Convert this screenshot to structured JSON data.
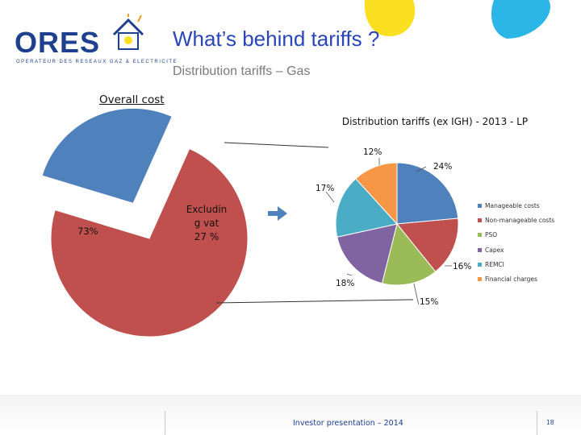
{
  "header": {
    "logo_text": "ORES",
    "logo_tagline": "OPERATEUR DES RESEAUX GAZ & ELECTRICITE",
    "title": "What’s behind tariffs ?",
    "subtitle": "Distribution tariffs – Gas"
  },
  "section": {
    "label": "Overall cost"
  },
  "arrow_icon": "right-arrow",
  "chart_data": [
    {
      "type": "pie",
      "title": "Overall cost",
      "slices": [
        {
          "label": "",
          "value": 73,
          "display": "73%",
          "color": "#c0504d"
        },
        {
          "label": "Excluding vat",
          "value": 27,
          "display": "Excludin\ng vat\n27 %",
          "color": "#4f81bd"
        }
      ]
    },
    {
      "type": "pie",
      "title": "Distribution tariffs (ex IGH) - 2013 - LP",
      "legend_position": "right",
      "slices": [
        {
          "label": "Manageable costs",
          "value": 24,
          "display": "24%",
          "color": "#4f81bd"
        },
        {
          "label": "Non-manageable costs",
          "value": 16,
          "display": "16%",
          "color": "#c0504d"
        },
        {
          "label": "PSO",
          "value": 15,
          "display": "15%",
          "color": "#9bbb59"
        },
        {
          "label": "Capex",
          "value": 18,
          "display": "18%",
          "color": "#8064a2"
        },
        {
          "label": "REMCI",
          "value": 17,
          "display": "17%",
          "color": "#4bacc6"
        },
        {
          "label": "Financial charges",
          "value": 12,
          "display": "12%",
          "color": "#f79646"
        }
      ]
    }
  ],
  "footer": {
    "text": "Investor presentation – 2014",
    "page_number": "18"
  }
}
